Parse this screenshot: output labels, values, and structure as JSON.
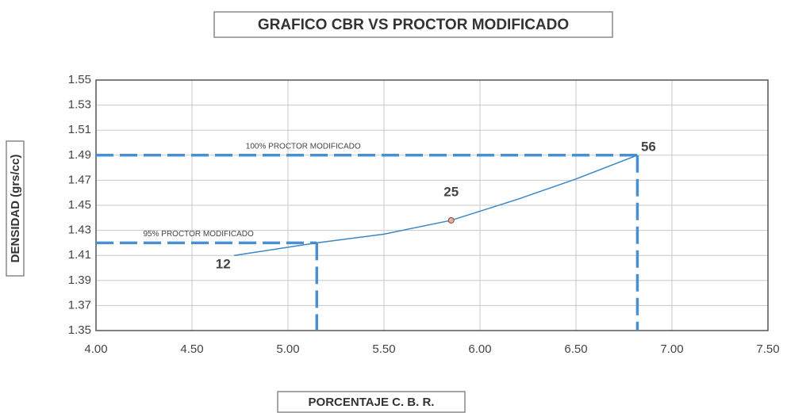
{
  "chart_data": {
    "type": "line",
    "title": "GRAFICO CBR VS PROCTOR MODIFICADO",
    "xlabel": "PORCENTAJE C. B. R.",
    "ylabel": "DENSIDAD (grs/cc)",
    "x": [
      4.72,
      5.15,
      5.5,
      5.85,
      6.2,
      6.5,
      6.82
    ],
    "series": [
      {
        "color": "#3a87c8",
        "values": [
          1.41,
          1.42,
          1.427,
          1.438,
          1.455,
          1.471,
          1.49
        ],
        "point_labels": [
          "12",
          null,
          null,
          "25",
          null,
          null,
          "56"
        ]
      }
    ],
    "reference_lines": [
      {
        "label": "100% PROCTOR MODIFICADO",
        "x": 6.82,
        "y": 1.49
      },
      {
        "label": "95% PROCTOR MODIFICADO",
        "x": 5.15,
        "y": 1.42
      }
    ],
    "reference_color": "#4a90d0",
    "xlim": [
      4.0,
      7.5
    ],
    "xticks": [
      {
        "value": 4.0,
        "label": "4.00"
      },
      {
        "value": 4.5,
        "label": "4.50"
      },
      {
        "value": 5.0,
        "label": "5.00"
      },
      {
        "value": 5.5,
        "label": "5.50"
      },
      {
        "value": 6.0,
        "label": "6.00"
      },
      {
        "value": 6.5,
        "label": "6.50"
      },
      {
        "value": 7.0,
        "label": "7.00"
      },
      {
        "value": 7.5,
        "label": "7.50"
      }
    ],
    "ylim": [
      1.35,
      1.55
    ],
    "yticks": [
      1.35,
      1.37,
      1.39,
      1.41,
      1.43,
      1.45,
      1.47,
      1.49,
      1.51,
      1.53,
      1.55
    ],
    "grid": true
  }
}
